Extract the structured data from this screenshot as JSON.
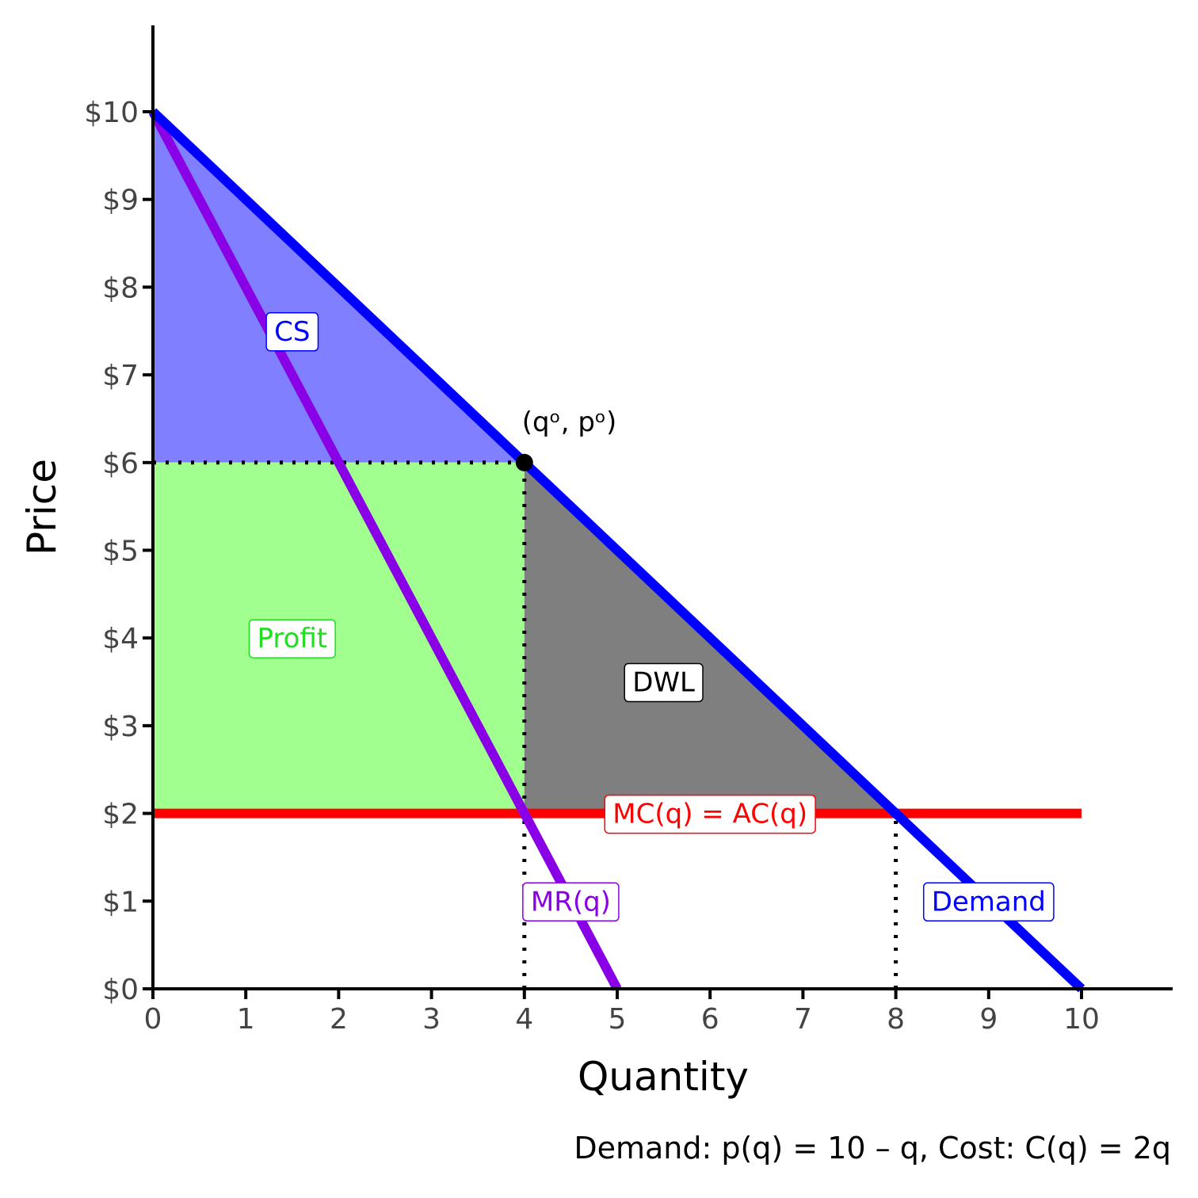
{
  "chart_data": {
    "type": "line",
    "xlabel": "Quantity",
    "ylabel": "Price",
    "caption": "Demand: p(q) = 10 – q, Cost: C(q) = 2q",
    "xlim": [
      0,
      11
    ],
    "ylim": [
      0,
      11
    ],
    "x_ticks": [
      0,
      1,
      2,
      3,
      4,
      5,
      6,
      7,
      8,
      9,
      10
    ],
    "x_tick_labels": [
      "0",
      "1",
      "2",
      "3",
      "4",
      "5",
      "6",
      "7",
      "8",
      "9",
      "10"
    ],
    "y_ticks": [
      0,
      1,
      2,
      3,
      4,
      5,
      6,
      7,
      8,
      9,
      10
    ],
    "y_tick_labels": [
      "$0",
      "$1",
      "$2",
      "$3",
      "$4",
      "$5",
      "$6",
      "$7",
      "$8",
      "$9",
      "$10"
    ],
    "grid": false,
    "legend": "none",
    "series": [
      {
        "name": "Demand",
        "color": "#0000ff",
        "x": [
          0,
          10
        ],
        "y": [
          10,
          0
        ],
        "label_at": [
          9,
          1
        ]
      },
      {
        "name": "MR(q)",
        "color": "#8a00e6",
        "x": [
          0,
          5
        ],
        "y": [
          10,
          0
        ],
        "label_at": [
          4.5,
          1
        ]
      },
      {
        "name": "MC(q) = AC(q)",
        "color": "#ff0000",
        "x": [
          0,
          10
        ],
        "y": [
          2,
          2
        ],
        "label_at": [
          6,
          2
        ]
      }
    ],
    "areas": [
      {
        "name": "CS",
        "color": "#7f7fff",
        "text_color": "#0000ff",
        "points": [
          [
            0,
            10
          ],
          [
            4,
            6
          ],
          [
            0,
            6
          ]
        ],
        "label_at": [
          1.5,
          7.5
        ]
      },
      {
        "name": "Profit",
        "color": "#a1ff8f",
        "text_color": "#22dd22",
        "points": [
          [
            0,
            6
          ],
          [
            4,
            6
          ],
          [
            4,
            2
          ],
          [
            0,
            2
          ]
        ],
        "label_at": [
          1.5,
          4
        ]
      },
      {
        "name": "DWL",
        "color": "#7f7f7f",
        "text_color": "#000000",
        "points": [
          [
            4,
            6
          ],
          [
            8,
            2
          ],
          [
            4,
            2
          ]
        ],
        "label_at": [
          5.5,
          3.5
        ]
      }
    ],
    "guides": [
      {
        "x": [
          0,
          4
        ],
        "y": [
          6,
          6
        ]
      },
      {
        "x": [
          4,
          4
        ],
        "y": [
          0,
          6
        ]
      },
      {
        "x": [
          8,
          8
        ],
        "y": [
          0,
          2
        ]
      }
    ],
    "point": {
      "x": 4,
      "y": 6,
      "label": "(qᵒ, pᵒ)"
    }
  }
}
